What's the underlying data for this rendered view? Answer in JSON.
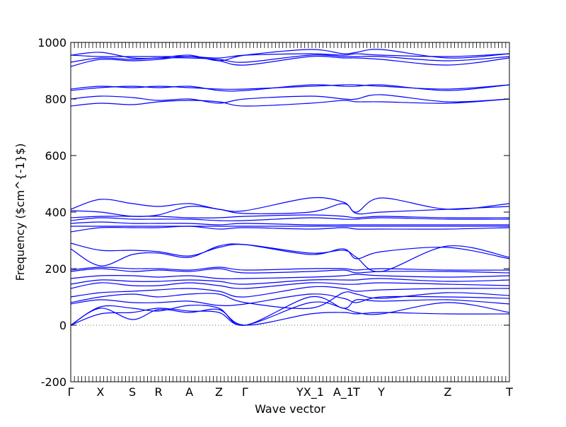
{
  "chart_data": {
    "type": "line",
    "xlabel": "Wave vector",
    "ylabel": "Frequency ($cm^{-1}$)",
    "ylim": [
      -200,
      1000
    ],
    "xlim": [
      0,
      18.5
    ],
    "yticks": [
      -200,
      0,
      200,
      400,
      600,
      800,
      1000
    ],
    "grid": false,
    "line_color": "#0000ff",
    "zero_line_color": "#6e6e6e",
    "high_symmetry_points": [
      {
        "label": "Γ",
        "x": 0.0
      },
      {
        "label": "X",
        "x": 1.25
      },
      {
        "label": "S",
        "x": 2.6
      },
      {
        "label": "R",
        "x": 3.7
      },
      {
        "label": "A",
        "x": 5.0
      },
      {
        "label": "Z",
        "x": 6.25
      },
      {
        "label": "Γ",
        "x": 7.35
      },
      {
        "label": "YX_1",
        "x": 10.1
      },
      {
        "label": "A_1",
        "x": 11.5
      },
      {
        "label": "T",
        "x": 12.05
      },
      {
        "label": "Y",
        "x": 13.1
      },
      {
        "label": "Z",
        "x": 15.9
      },
      {
        "label": "T",
        "x": 18.5
      }
    ],
    "x": [
      0,
      1.25,
      2.6,
      3.7,
      5.0,
      6.25,
      7.35,
      10.1,
      11.5,
      12.05,
      13.1,
      15.9,
      18.5
    ],
    "series": [
      {
        "values": [
          0,
          60,
          20,
          55,
          45,
          55,
          0,
          40,
          45,
          40,
          45,
          40,
          40
        ]
      },
      {
        "values": [
          0,
          40,
          45,
          60,
          50,
          45,
          0,
          80,
          60,
          45,
          40,
          80,
          45
        ]
      },
      {
        "values": [
          0,
          65,
          60,
          50,
          70,
          60,
          0,
          100,
          60,
          90,
          85,
          90,
          75
        ]
      },
      {
        "values": [
          75,
          90,
          80,
          80,
          85,
          70,
          75,
          110,
          95,
          80,
          100,
          100,
          95
        ]
      },
      {
        "values": [
          80,
          100,
          110,
          100,
          110,
          110,
          80,
          60,
          115,
          110,
          95,
          115,
          105
        ]
      },
      {
        "values": [
          100,
          115,
          120,
          125,
          130,
          120,
          100,
          135,
          130,
          120,
          125,
          130,
          130
        ]
      },
      {
        "values": [
          130,
          150,
          140,
          140,
          150,
          140,
          130,
          150,
          145,
          145,
          150,
          145,
          140
        ]
      },
      {
        "values": [
          145,
          160,
          155,
          155,
          160,
          155,
          145,
          160,
          160,
          160,
          165,
          155,
          160
        ]
      },
      {
        "values": [
          165,
          175,
          175,
          170,
          175,
          165,
          165,
          170,
          175,
          180,
          175,
          170,
          175
        ]
      },
      {
        "values": [
          190,
          200,
          190,
          195,
          190,
          200,
          185,
          190,
          195,
          185,
          190,
          190,
          185
        ]
      },
      {
        "values": [
          195,
          205,
          200,
          200,
          195,
          205,
          195,
          200,
          200,
          195,
          200,
          195,
          195
        ]
      },
      {
        "values": [
          270,
          210,
          250,
          255,
          240,
          280,
          285,
          250,
          270,
          235,
          260,
          275,
          235
        ]
      },
      {
        "values": [
          290,
          265,
          265,
          260,
          245,
          275,
          285,
          255,
          265,
          240,
          190,
          280,
          240
        ]
      },
      {
        "values": [
          330,
          345,
          345,
          345,
          350,
          340,
          345,
          340,
          345,
          340,
          340,
          340,
          345
        ]
      },
      {
        "values": [
          350,
          350,
          350,
          350,
          350,
          350,
          350,
          350,
          350,
          350,
          350,
          350,
          350
        ]
      },
      {
        "values": [
          360,
          365,
          360,
          360,
          360,
          355,
          360,
          355,
          355,
          355,
          355,
          355,
          355
        ]
      },
      {
        "values": [
          370,
          380,
          375,
          375,
          375,
          370,
          370,
          380,
          375,
          375,
          380,
          375,
          375
        ]
      },
      {
        "values": [
          380,
          385,
          385,
          385,
          380,
          380,
          385,
          390,
          385,
          380,
          385,
          380,
          380
        ]
      },
      {
        "values": [
          405,
          400,
          385,
          390,
          420,
          410,
          395,
          400,
          430,
          395,
          400,
          410,
          420
        ]
      },
      {
        "values": [
          410,
          445,
          430,
          420,
          430,
          410,
          405,
          450,
          435,
          400,
          450,
          410,
          430
        ]
      },
      {
        "values": [
          775,
          785,
          780,
          790,
          795,
          790,
          775,
          785,
          795,
          790,
          790,
          785,
          800
        ]
      },
      {
        "values": [
          800,
          810,
          805,
          795,
          800,
          785,
          800,
          810,
          800,
          800,
          815,
          790,
          800
        ]
      },
      {
        "values": [
          830,
          840,
          845,
          840,
          845,
          830,
          830,
          850,
          845,
          845,
          850,
          830,
          850
        ]
      },
      {
        "values": [
          835,
          845,
          840,
          845,
          840,
          835,
          835,
          845,
          850,
          850,
          845,
          835,
          850
        ]
      },
      {
        "values": [
          915,
          940,
          935,
          940,
          950,
          935,
          920,
          950,
          945,
          945,
          940,
          920,
          945
        ]
      },
      {
        "values": [
          930,
          945,
          940,
          945,
          945,
          940,
          930,
          955,
          950,
          950,
          950,
          935,
          950
        ]
      },
      {
        "values": [
          955,
          965,
          945,
          945,
          955,
          935,
          955,
          975,
          960,
          965,
          975,
          945,
          960
        ]
      },
      {
        "values": [
          955,
          950,
          950,
          950,
          950,
          945,
          955,
          960,
          955,
          960,
          955,
          950,
          960
        ]
      }
    ]
  }
}
